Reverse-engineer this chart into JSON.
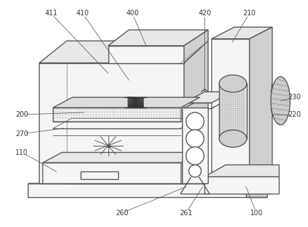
{
  "bg_color": "#ffffff",
  "lc": "#555555",
  "lc_dark": "#333333",
  "lc_light": "#888888",
  "fill_light": "#f5f5f5",
  "fill_mid": "#e8e8e8",
  "fill_dark": "#d0d0d0",
  "fill_stipple": "#eeeeee",
  "label_fs": 7.0,
  "label_color": "#333333",
  "lw_main": 1.0,
  "lw_thin": 0.6,
  "lw_leader": 0.55
}
